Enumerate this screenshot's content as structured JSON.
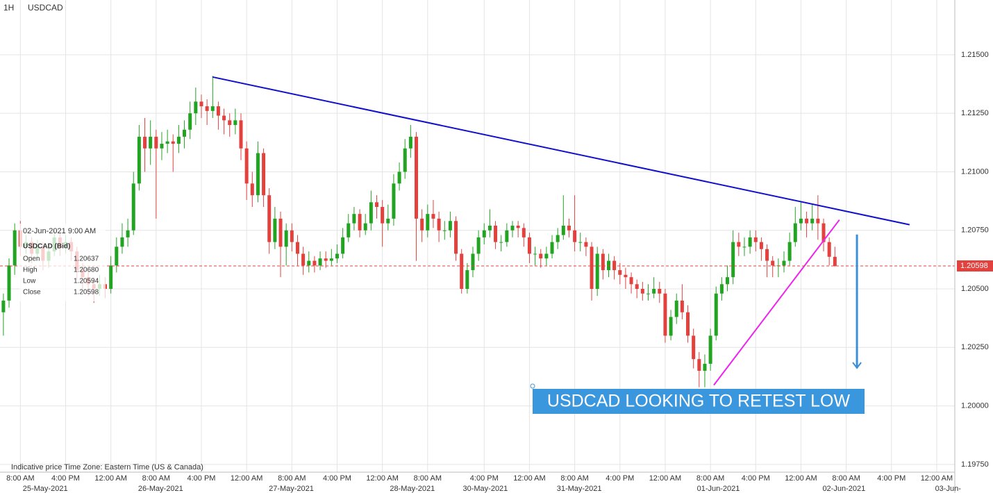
{
  "chart_data": {
    "type": "candlestick",
    "timeframe": "1H",
    "symbol": "USDCAD",
    "up_color": "#22a322",
    "down_color": "#e2413e",
    "ylim": [
      1.19717,
      1.21734
    ],
    "xlim": [
      -0.6,
      168.2
    ],
    "grid": true,
    "yticks": [
      {
        "value": 1.215,
        "label": "1.21500"
      },
      {
        "value": 1.2125,
        "label": "1.21250"
      },
      {
        "value": 1.21,
        "label": "1.21000"
      },
      {
        "value": 1.2075,
        "label": "1.20750"
      },
      {
        "value": 1.205,
        "label": "1.20500"
      },
      {
        "value": 1.2025,
        "label": "1.20250"
      },
      {
        "value": 1.2,
        "label": "1.20000"
      },
      {
        "value": 1.1975,
        "label": "1.19750"
      }
    ],
    "xticks": [
      {
        "value": 3,
        "label": "8:00 AM"
      },
      {
        "value": 11,
        "label": "4:00 PM"
      },
      {
        "value": 19,
        "label": "12:00 AM"
      },
      {
        "value": 27,
        "label": "8:00 AM"
      },
      {
        "value": 35,
        "label": "4:00 PM"
      },
      {
        "value": 43,
        "label": "12:00 AM"
      },
      {
        "value": 51,
        "label": "8:00 AM"
      },
      {
        "value": 59,
        "label": "4:00 PM"
      },
      {
        "value": 67,
        "label": "12:00 AM"
      },
      {
        "value": 75,
        "label": "8:00 AM"
      },
      {
        "value": 85,
        "label": "4:00 PM"
      },
      {
        "value": 93,
        "label": "12:00 AM"
      },
      {
        "value": 101,
        "label": "8:00 AM"
      },
      {
        "value": 109,
        "label": "4:00 PM"
      },
      {
        "value": 117,
        "label": "12:00 AM"
      },
      {
        "value": 125,
        "label": "8:00 AM"
      },
      {
        "value": 133,
        "label": "4:00 PM"
      },
      {
        "value": 141,
        "label": "12:00 AM"
      },
      {
        "value": 149,
        "label": "8:00 AM"
      },
      {
        "value": 157,
        "label": "4:00 PM"
      },
      {
        "value": 165,
        "label": "12:00 AM"
      }
    ],
    "date_labels": [
      {
        "value": 7.4,
        "label": "25-May-2021"
      },
      {
        "value": 27.8,
        "label": "26-May-2021"
      },
      {
        "value": 50.9,
        "label": "27-May-2021"
      },
      {
        "value": 72.3,
        "label": "28-May-2021"
      },
      {
        "value": 85.2,
        "label": "30-May-2021"
      },
      {
        "value": 101.8,
        "label": "31-May-2021"
      },
      {
        "value": 126.4,
        "label": "01-Jun-2021"
      },
      {
        "value": 148.6,
        "label": "02-Jun-2021"
      },
      {
        "value": 167,
        "label": "03-Jun-"
      }
    ],
    "last_price": {
      "value": 1.20598,
      "label": "1.20598"
    },
    "trendlines": [
      {
        "color": "#1010cc",
        "x": [
          37,
          160.2
        ],
        "y": [
          1.21405,
          1.20774
        ]
      },
      {
        "color": "#ee22ee",
        "x": [
          125.6,
          147.8
        ],
        "y": [
          1.20089,
          1.20795
        ]
      }
    ],
    "arrow": {
      "color": "#3a8fd6",
      "x": 150.9,
      "y": [
        1.20732,
        1.20162
      ]
    },
    "annotation": "USDCAD LOOKING TO RETEST LOW",
    "footer": "Indicative price    Time Zone: Eastern Time (US & Canada)",
    "tooltip": {
      "time": "02-Jun-2021 9:00 AM",
      "title": "USDCAD (Bid)",
      "rows": [
        [
          "Open",
          "1.20637"
        ],
        [
          "High",
          "1.20680"
        ],
        [
          "Low",
          "1.20594"
        ],
        [
          "Close",
          "1.20598"
        ]
      ]
    },
    "ohlc": [
      [
        1.204,
        1.2048,
        1.203,
        1.2045
      ],
      [
        1.2045,
        1.2063,
        1.2042,
        1.206
      ],
      [
        1.206,
        1.2078,
        1.2056,
        1.2075
      ],
      [
        1.2075,
        1.2079,
        1.2064,
        1.2068
      ],
      [
        1.2068,
        1.2073,
        1.2065,
        1.207
      ],
      [
        1.207,
        1.2072,
        1.2061,
        1.2065
      ],
      [
        1.2065,
        1.2071,
        1.2062,
        1.2068
      ],
      [
        1.2068,
        1.207,
        1.2058,
        1.2062
      ],
      [
        1.2062,
        1.2069,
        1.2059,
        1.2066
      ],
      [
        1.2066,
        1.2075,
        1.2064,
        1.2072
      ],
      [
        1.2072,
        1.2074,
        1.2064,
        1.2068
      ],
      [
        1.2068,
        1.2073,
        1.2065,
        1.207
      ],
      [
        1.207,
        1.2072,
        1.2062,
        1.2066
      ],
      [
        1.2066,
        1.2068,
        1.2054,
        1.2058
      ],
      [
        1.2058,
        1.2061,
        1.205,
        1.2055
      ],
      [
        1.2055,
        1.2058,
        1.2047,
        1.2052
      ],
      [
        1.2052,
        1.2055,
        1.2044,
        1.205
      ],
      [
        1.205,
        1.2056,
        1.2047,
        1.2052
      ],
      [
        1.2052,
        1.2055,
        1.2046,
        1.205
      ],
      [
        1.205,
        1.2064,
        1.2048,
        1.206
      ],
      [
        1.206,
        1.2072,
        1.2057,
        1.2068
      ],
      [
        1.2068,
        1.2078,
        1.2065,
        1.2072
      ],
      [
        1.2072,
        1.208,
        1.2068,
        1.2075
      ],
      [
        1.2075,
        1.21,
        1.2073,
        1.2095
      ],
      [
        1.2095,
        1.212,
        1.2092,
        1.2115
      ],
      [
        1.2115,
        1.2123,
        1.21,
        1.211
      ],
      [
        1.211,
        1.2122,
        1.2103,
        1.2115
      ],
      [
        1.2115,
        1.2118,
        1.208,
        1.211
      ],
      [
        1.211,
        1.2117,
        1.2105,
        1.2112
      ],
      [
        1.2112,
        1.2118,
        1.2108,
        1.2113
      ],
      [
        1.2113,
        1.2116,
        1.21,
        1.2112
      ],
      [
        1.2112,
        1.212,
        1.2108,
        1.2115
      ],
      [
        1.2115,
        1.2122,
        1.211,
        1.2118
      ],
      [
        1.2118,
        1.213,
        1.2114,
        1.2125
      ],
      [
        1.2125,
        1.2136,
        1.212,
        1.213
      ],
      [
        1.213,
        1.2133,
        1.2123,
        1.2128
      ],
      [
        1.2128,
        1.2131,
        1.212,
        1.2126
      ],
      [
        1.2126,
        1.2141,
        1.2123,
        1.2128
      ],
      [
        1.2128,
        1.213,
        1.2118,
        1.2124
      ],
      [
        1.2124,
        1.2127,
        1.2116,
        1.2122
      ],
      [
        1.2122,
        1.2125,
        1.2115,
        1.212
      ],
      [
        1.212,
        1.2127,
        1.2116,
        1.2122
      ],
      [
        1.2122,
        1.2125,
        1.2105,
        1.211
      ],
      [
        1.211,
        1.2113,
        1.2088,
        1.2095
      ],
      [
        1.2095,
        1.21,
        1.2085,
        1.209
      ],
      [
        1.209,
        1.2113,
        1.2087,
        1.2108
      ],
      [
        1.2108,
        1.211,
        1.2085,
        1.209
      ],
      [
        1.209,
        1.2093,
        1.2065,
        1.207
      ],
      [
        1.207,
        1.2085,
        1.2067,
        1.208
      ],
      [
        1.208,
        1.2083,
        1.2055,
        1.2068
      ],
      [
        1.2068,
        1.2078,
        1.206,
        1.2075
      ],
      [
        1.2075,
        1.2078,
        1.2066,
        1.207
      ],
      [
        1.207,
        1.2073,
        1.206,
        1.2065
      ],
      [
        1.2065,
        1.2068,
        1.2056,
        1.206
      ],
      [
        1.206,
        1.2066,
        1.2057,
        1.2062
      ],
      [
        1.2062,
        1.2064,
        1.2057,
        1.206
      ],
      [
        1.206,
        1.2066,
        1.2058,
        1.2063
      ],
      [
        1.2063,
        1.2066,
        1.2059,
        1.2062
      ],
      [
        1.2062,
        1.2067,
        1.206,
        1.2063
      ],
      [
        1.2063,
        1.2069,
        1.2061,
        1.2065
      ],
      [
        1.2065,
        1.2076,
        1.2063,
        1.2072
      ],
      [
        1.2072,
        1.2082,
        1.207,
        1.2078
      ],
      [
        1.2078,
        1.2085,
        1.2075,
        1.2082
      ],
      [
        1.2082,
        1.2084,
        1.2072,
        1.2075
      ],
      [
        1.2075,
        1.2082,
        1.2073,
        1.2078
      ],
      [
        1.2078,
        1.2092,
        1.2075,
        1.2087
      ],
      [
        1.2087,
        1.209,
        1.208,
        1.2085
      ],
      [
        1.2085,
        1.2088,
        1.2068,
        1.2078
      ],
      [
        1.2078,
        1.2086,
        1.2075,
        1.208
      ],
      [
        1.208,
        1.2099,
        1.2077,
        1.2095
      ],
      [
        1.2095,
        1.2104,
        1.2092,
        1.21
      ],
      [
        1.21,
        1.2114,
        1.2097,
        1.211
      ],
      [
        1.211,
        1.212,
        1.2106,
        1.2115
      ],
      [
        1.2115,
        1.2117,
        1.2062,
        1.208
      ],
      [
        1.208,
        1.2084,
        1.207,
        1.2075
      ],
      [
        1.2075,
        1.2086,
        1.2072,
        1.2082
      ],
      [
        1.2082,
        1.2088,
        1.2076,
        1.208
      ],
      [
        1.208,
        1.2083,
        1.207,
        1.2075
      ],
      [
        1.2075,
        1.2079,
        1.2071,
        1.2075
      ],
      [
        1.2075,
        1.2083,
        1.2072,
        1.2079
      ],
      [
        1.2079,
        1.2081,
        1.2062,
        1.2065
      ],
      [
        1.2065,
        1.2067,
        1.2048,
        1.205
      ],
      [
        1.205,
        1.2061,
        1.2048,
        1.2058
      ],
      [
        1.2058,
        1.2068,
        1.2055,
        1.2065
      ],
      [
        1.2065,
        1.2075,
        1.2062,
        1.2072
      ],
      [
        1.2072,
        1.2078,
        1.2069,
        1.2075
      ],
      [
        1.2075,
        1.2084,
        1.2072,
        1.2077
      ],
      [
        1.2077,
        1.2079,
        1.2067,
        1.207
      ],
      [
        1.207,
        1.2073,
        1.2066,
        1.207
      ],
      [
        1.207,
        1.2078,
        1.2068,
        1.2075
      ],
      [
        1.2075,
        1.2079,
        1.2072,
        1.2077
      ],
      [
        1.2077,
        1.2079,
        1.2072,
        1.2076
      ],
      [
        1.2076,
        1.2078,
        1.2068,
        1.2072
      ],
      [
        1.2072,
        1.2074,
        1.2061,
        1.2065
      ],
      [
        1.2065,
        1.2068,
        1.206,
        1.2065
      ],
      [
        1.2065,
        1.2067,
        1.2059,
        1.2063
      ],
      [
        1.2063,
        1.2068,
        1.206,
        1.2065
      ],
      [
        1.2065,
        1.2073,
        1.2063,
        1.207
      ],
      [
        1.207,
        1.2076,
        1.2067,
        1.2073
      ],
      [
        1.2073,
        1.209,
        1.2071,
        1.2077
      ],
      [
        1.2077,
        1.208,
        1.2072,
        1.2075
      ],
      [
        1.2075,
        1.209,
        1.2066,
        1.207
      ],
      [
        1.207,
        1.2074,
        1.2066,
        1.207
      ],
      [
        1.207,
        1.2072,
        1.2064,
        1.2068
      ],
      [
        1.2068,
        1.207,
        1.2045,
        1.205
      ],
      [
        1.205,
        1.2068,
        1.2047,
        1.2065
      ],
      [
        1.2065,
        1.2067,
        1.2054,
        1.2058
      ],
      [
        1.2058,
        1.2065,
        1.2055,
        1.2062
      ],
      [
        1.2062,
        1.2064,
        1.2054,
        1.2058
      ],
      [
        1.2058,
        1.2061,
        1.2052,
        1.2056
      ],
      [
        1.2056,
        1.2059,
        1.205,
        1.2055
      ],
      [
        1.2055,
        1.2057,
        1.2048,
        1.2052
      ],
      [
        1.2052,
        1.2054,
        1.2046,
        1.205
      ],
      [
        1.205,
        1.2053,
        1.2045,
        1.2048
      ],
      [
        1.2048,
        1.2052,
        1.2045,
        1.2048
      ],
      [
        1.2048,
        1.2055,
        1.2046,
        1.205
      ],
      [
        1.205,
        1.2053,
        1.2044,
        1.2048
      ],
      [
        1.2048,
        1.205,
        1.2027,
        1.203
      ],
      [
        1.203,
        1.2041,
        1.2028,
        1.2038
      ],
      [
        1.2038,
        1.2048,
        1.2035,
        1.2045
      ],
      [
        1.2045,
        1.2052,
        1.2037,
        1.204
      ],
      [
        1.204,
        1.2043,
        1.2027,
        1.203
      ],
      [
        1.203,
        1.2033,
        1.2016,
        1.202
      ],
      [
        1.202,
        1.2023,
        1.2008,
        1.2015
      ],
      [
        1.2015,
        1.2022,
        1.2008,
        1.2018
      ],
      [
        1.2018,
        1.2033,
        1.2015,
        1.203
      ],
      [
        1.203,
        1.2051,
        1.2028,
        1.2048
      ],
      [
        1.2048,
        1.2055,
        1.2045,
        1.2052
      ],
      [
        1.2052,
        1.206,
        1.2049,
        1.2055
      ],
      [
        1.2055,
        1.2075,
        1.2052,
        1.207
      ],
      [
        1.207,
        1.2074,
        1.2064,
        1.2068
      ],
      [
        1.2068,
        1.2072,
        1.2064,
        1.2068
      ],
      [
        1.2068,
        1.2075,
        1.2065,
        1.2072
      ],
      [
        1.2072,
        1.2075,
        1.2066,
        1.207
      ],
      [
        1.207,
        1.2072,
        1.2062,
        1.2067
      ],
      [
        1.2067,
        1.2069,
        1.2055,
        1.2062
      ],
      [
        1.2062,
        1.2064,
        1.2055,
        1.206
      ],
      [
        1.206,
        1.2063,
        1.2055,
        1.206
      ],
      [
        1.206,
        1.2066,
        1.2057,
        1.2062
      ],
      [
        1.2062,
        1.2074,
        1.206,
        1.207
      ],
      [
        1.207,
        1.2085,
        1.2068,
        1.2078
      ],
      [
        1.2078,
        1.2087,
        1.2075,
        1.208
      ],
      [
        1.208,
        1.2083,
        1.2072,
        1.2078
      ],
      [
        1.2078,
        1.2086,
        1.2075,
        1.208
      ],
      [
        1.208,
        1.209,
        1.2071,
        1.2078
      ],
      [
        1.2078,
        1.208,
        1.2066,
        1.207
      ],
      [
        1.207,
        1.2072,
        1.206,
        1.20637
      ],
      [
        1.20637,
        1.2068,
        1.20594,
        1.20598
      ]
    ]
  }
}
